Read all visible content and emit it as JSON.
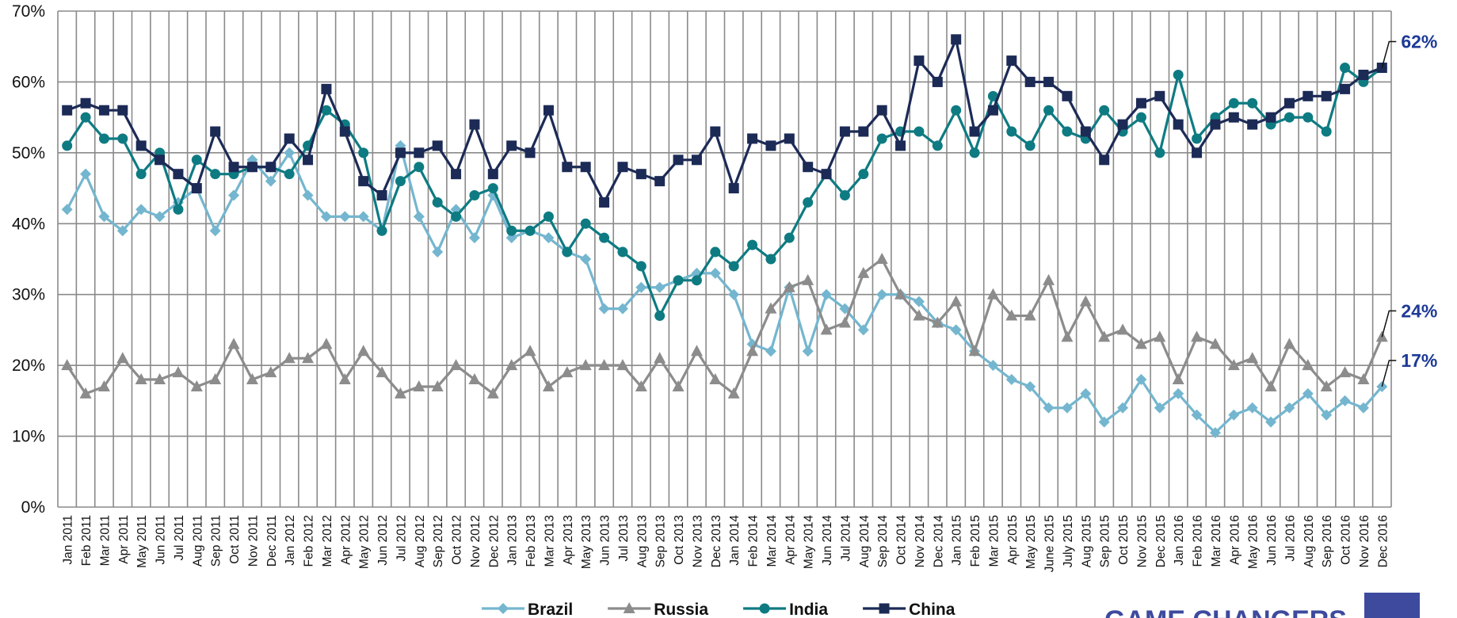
{
  "chart_data": {
    "type": "line",
    "categories": [
      "Jan 2011",
      "Feb 2011",
      "Mar 2011",
      "Apr 2011",
      "May 2011",
      "Jun 2011",
      "Jul 2011",
      "Aug 2011",
      "Sep 2011",
      "Oct 2011",
      "Nov 2011",
      "Dec 2011",
      "Jan 2012",
      "Feb 2012",
      "Mar 2012",
      "Apr 2012",
      "May 2012",
      "Jun 2012",
      "Jul 2012",
      "Aug 2012",
      "Sep 2012",
      "Oct 2012",
      "Nov 2012",
      "Dec 2012",
      "Jan 2013",
      "Feb 2013",
      "Mar 2013",
      "Apr 2013",
      "May 2013",
      "Jun 2013",
      "Jul 2013",
      "Aug 2013",
      "Sep 2013",
      "Oct 2013",
      "Nov 2013",
      "Dec 2013",
      "Jan 2014",
      "Feb 2014",
      "Mar 2014",
      "Apr 2014",
      "May 2014",
      "Jun 2014",
      "Jul 2014",
      "Aug 2014",
      "Sep 2014",
      "Oct 2014",
      "Nov 2014",
      "Dec 2014",
      "Jan 2015",
      "Feb 2015",
      "Mar 2015",
      "Apr 2015",
      "May 2015",
      "June 2015",
      "July 2015",
      "Aug 2015",
      "Sep 2015",
      "Oct 2015",
      "Nov 2015",
      "Dec 2015",
      "Jan 2016",
      "Feb 2016",
      "Mar 2016",
      "Apr 2016",
      "May 2016",
      "Jun 2016",
      "Jul 2016",
      "Aug 2016",
      "Sep 2016",
      "Oct 2016",
      "Nov 2016",
      "Dec 2016"
    ],
    "series": [
      {
        "name": "Brazil",
        "color": "#74b6cf",
        "marker": "diamond",
        "values": [
          42,
          47,
          41,
          39,
          42,
          41,
          43,
          45,
          39,
          44,
          49,
          46,
          50,
          44,
          41,
          41,
          41,
          39,
          51,
          41,
          36,
          42,
          38,
          44,
          38,
          39,
          38,
          36,
          35,
          28,
          28,
          31,
          31,
          32,
          33,
          33,
          30,
          23,
          22,
          31,
          22,
          30,
          28,
          25,
          30,
          30,
          29,
          26,
          25,
          22,
          20,
          18,
          17,
          14,
          14,
          16,
          12,
          14,
          18,
          14,
          16,
          13,
          10.5,
          13,
          14,
          12,
          14,
          16,
          13,
          15,
          14,
          17
        ]
      },
      {
        "name": "Russia",
        "color": "#8c8c8c",
        "marker": "triangle",
        "values": [
          20,
          16,
          17,
          21,
          18,
          18,
          19,
          17,
          18,
          23,
          18,
          19,
          21,
          21,
          23,
          18,
          22,
          19,
          16,
          17,
          17,
          20,
          18,
          16,
          20,
          22,
          17,
          19,
          20,
          20,
          20,
          17,
          21,
          17,
          22,
          18,
          16,
          22,
          28,
          31,
          32,
          25,
          26,
          33,
          35,
          30,
          27,
          26,
          29,
          22,
          30,
          27,
          27,
          32,
          24,
          29,
          24,
          25,
          23,
          24,
          18,
          24,
          23,
          20,
          21,
          17,
          23,
          20,
          17,
          19,
          18,
          24
        ]
      },
      {
        "name": "India",
        "color": "#0e7b82",
        "marker": "circle",
        "values": [
          51,
          55,
          52,
          52,
          47,
          50,
          42,
          49,
          47,
          47,
          48,
          48,
          47,
          51,
          56,
          54,
          50,
          39,
          46,
          48,
          43,
          41,
          44,
          45,
          39,
          39,
          41,
          36,
          40,
          38,
          36,
          34,
          27,
          32,
          32,
          36,
          34,
          37,
          35,
          38,
          43,
          47,
          44,
          47,
          52,
          53,
          53,
          51,
          56,
          50,
          58,
          53,
          51,
          56,
          53,
          52,
          56,
          53,
          55,
          50,
          61,
          52,
          55,
          57,
          57,
          54,
          55,
          55,
          53,
          62,
          60,
          62
        ]
      },
      {
        "name": "China",
        "color": "#1c2a56",
        "marker": "square",
        "values": [
          56,
          57,
          56,
          56,
          51,
          49,
          47,
          45,
          53,
          48,
          48,
          48,
          52,
          49,
          59,
          53,
          46,
          44,
          50,
          50,
          51,
          47,
          54,
          47,
          51,
          50,
          56,
          48,
          48,
          43,
          48,
          47,
          46,
          49,
          49,
          53,
          45,
          52,
          51,
          52,
          48,
          47,
          53,
          53,
          56,
          51,
          63,
          60,
          66,
          53,
          56,
          63,
          60,
          60,
          58,
          53,
          49,
          54,
          57,
          58,
          54,
          50,
          54,
          55,
          54,
          55,
          57,
          58,
          58,
          59,
          61,
          62
        ]
      }
    ],
    "ylim": [
      0,
      70
    ],
    "yticks": [
      {
        "value": 0,
        "label": "0%"
      },
      {
        "value": 10,
        "label": "10%"
      },
      {
        "value": 20,
        "label": "20%"
      },
      {
        "value": 30,
        "label": "30%"
      },
      {
        "value": 40,
        "label": "40%"
      },
      {
        "value": 50,
        "label": "50%"
      },
      {
        "value": 60,
        "label": "60%"
      },
      {
        "value": 70,
        "label": "70%"
      }
    ],
    "grid": true,
    "annotations": [
      {
        "value": 62,
        "label": "62%"
      },
      {
        "value": 24,
        "label": "24%"
      },
      {
        "value": 17,
        "label": "17%"
      }
    ],
    "annotation_color": "#1d3a96",
    "logo_text": "GAME CHANGERS"
  }
}
